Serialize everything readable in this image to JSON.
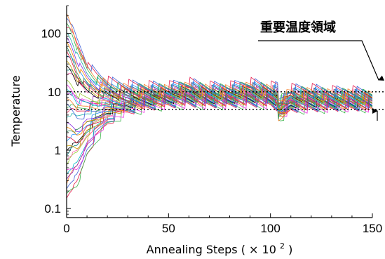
{
  "chart_data": {
    "type": "line",
    "xlabel_main": "Annealing Steps",
    "xlabel_unit_prefix": "( × 10",
    "xlabel_unit_exp": "2",
    "xlabel_unit_suffix": ")",
    "ylabel": "Temperature",
    "y_scale": "log",
    "xlim": [
      0,
      150
    ],
    "ylim": [
      0.07,
      300
    ],
    "x_ticks": [
      0,
      50,
      100,
      150
    ],
    "x_tick_labels": [
      "0",
      "50",
      "100",
      "150"
    ],
    "y_ticks": [
      0.1,
      1,
      10,
      100
    ],
    "y_tick_labels": [
      "0.1",
      "1",
      "10",
      "100"
    ],
    "reference_lines": [
      10,
      5
    ],
    "annotation": "重要温度領域",
    "series_count": 40,
    "series_colors": [
      "#e6194b",
      "#3cb44b",
      "#4363d8",
      "#f58231",
      "#911eb4",
      "#00b7c7",
      "#f032e6",
      "#9acd32",
      "#ff69b4",
      "#008080",
      "#000000",
      "#c8a000",
      "#1e90ff",
      "#dc143c",
      "#2e8b57",
      "#ff8c00",
      "#8a2be2",
      "#20b2aa"
    ],
    "series_start_range": [
      0.15,
      220
    ],
    "envelope": {
      "x": [
        0,
        5,
        10,
        20,
        30,
        40,
        50,
        60,
        70,
        80,
        90,
        100,
        105,
        110,
        120,
        130,
        140,
        150
      ],
      "upper": [
        220,
        40,
        15,
        12,
        12,
        12,
        12,
        14,
        12,
        12,
        14,
        12,
        12,
        11,
        11,
        10,
        10,
        9
      ],
      "lower": [
        0.15,
        0.2,
        1.2,
        3,
        4,
        4.5,
        5,
        5,
        5,
        5,
        5,
        5,
        4,
        4,
        4.2,
        4.4,
        4.5,
        4.5
      ]
    },
    "reheat_steps": [
      15,
      28,
      38,
      48,
      58,
      68,
      78,
      88,
      98,
      108,
      118,
      128,
      138,
      148
    ],
    "drop_step": 104
  }
}
